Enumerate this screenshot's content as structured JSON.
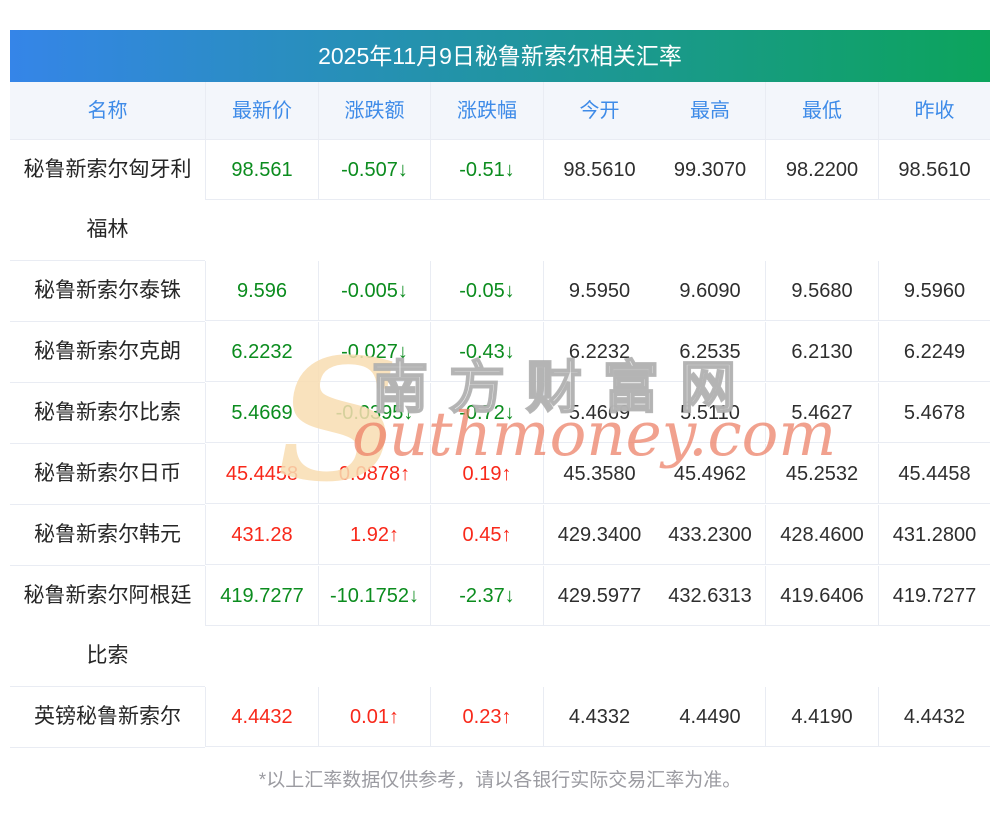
{
  "title": "2025年11月9日秘鲁新索尔相关汇率",
  "columns": [
    "名称",
    "最新价",
    "涨跌额",
    "涨跌幅",
    "今开",
    "最高",
    "最低",
    "昨收"
  ],
  "rows": [
    {
      "name": "秘鲁新索尔匈牙利福林",
      "latest": "98.561",
      "change": "-0.507↓",
      "pct": "-0.51↓",
      "trend": "down",
      "open": "98.5610",
      "high": "99.3070",
      "low": "98.2200",
      "prev": "98.5610"
    },
    {
      "name": "秘鲁新索尔泰铢",
      "latest": "9.596",
      "change": "-0.005↓",
      "pct": "-0.05↓",
      "trend": "down",
      "open": "9.5950",
      "high": "9.6090",
      "low": "9.5680",
      "prev": "9.5960"
    },
    {
      "name": "秘鲁新索尔克朗",
      "latest": "6.2232",
      "change": "-0.027↓",
      "pct": "-0.43↓",
      "trend": "down",
      "open": "6.2232",
      "high": "6.2535",
      "low": "6.2130",
      "prev": "6.2249"
    },
    {
      "name": "秘鲁新索尔比索",
      "latest": "5.4669",
      "change": "-0.0395↓",
      "pct": "-0.72↓",
      "trend": "down",
      "open": "5.4669",
      "high": "5.5110",
      "low": "5.4627",
      "prev": "5.4678"
    },
    {
      "name": "秘鲁新索尔日币",
      "latest": "45.4458",
      "change": "0.0878↑",
      "pct": "0.19↑",
      "trend": "up",
      "open": "45.3580",
      "high": "45.4962",
      "low": "45.2532",
      "prev": "45.4458"
    },
    {
      "name": "秘鲁新索尔韩元",
      "latest": "431.28",
      "change": "1.92↑",
      "pct": "0.45↑",
      "trend": "up",
      "open": "429.3400",
      "high": "433.2300",
      "low": "428.4600",
      "prev": "431.2800"
    },
    {
      "name": "秘鲁新索尔阿根廷比索",
      "latest": "419.7277",
      "change": "-10.1752↓",
      "pct": "-2.37↓",
      "trend": "down",
      "open": "429.5977",
      "high": "432.6313",
      "low": "419.6406",
      "prev": "419.7277"
    },
    {
      "name": "英镑秘鲁新索尔",
      "latest": "4.4432",
      "change": "0.01↑",
      "pct": "0.23↑",
      "trend": "up",
      "open": "4.4332",
      "high": "4.4490",
      "low": "4.4190",
      "prev": "4.4432"
    }
  ],
  "footer": {
    "note": "*以上汇率数据仅供参考，请以各银行实际交易汇率为准。"
  },
  "watermark": {
    "en_initial": "S",
    "en_rest": "outhmoney.com",
    "cn": "南方财富网"
  },
  "colors": {
    "title_gradient_left": "#3585e8",
    "title_gradient_right": "#0ca45c",
    "header_text": "#3e8be8",
    "up": "#f8281a",
    "down": "#0b8c1e"
  }
}
